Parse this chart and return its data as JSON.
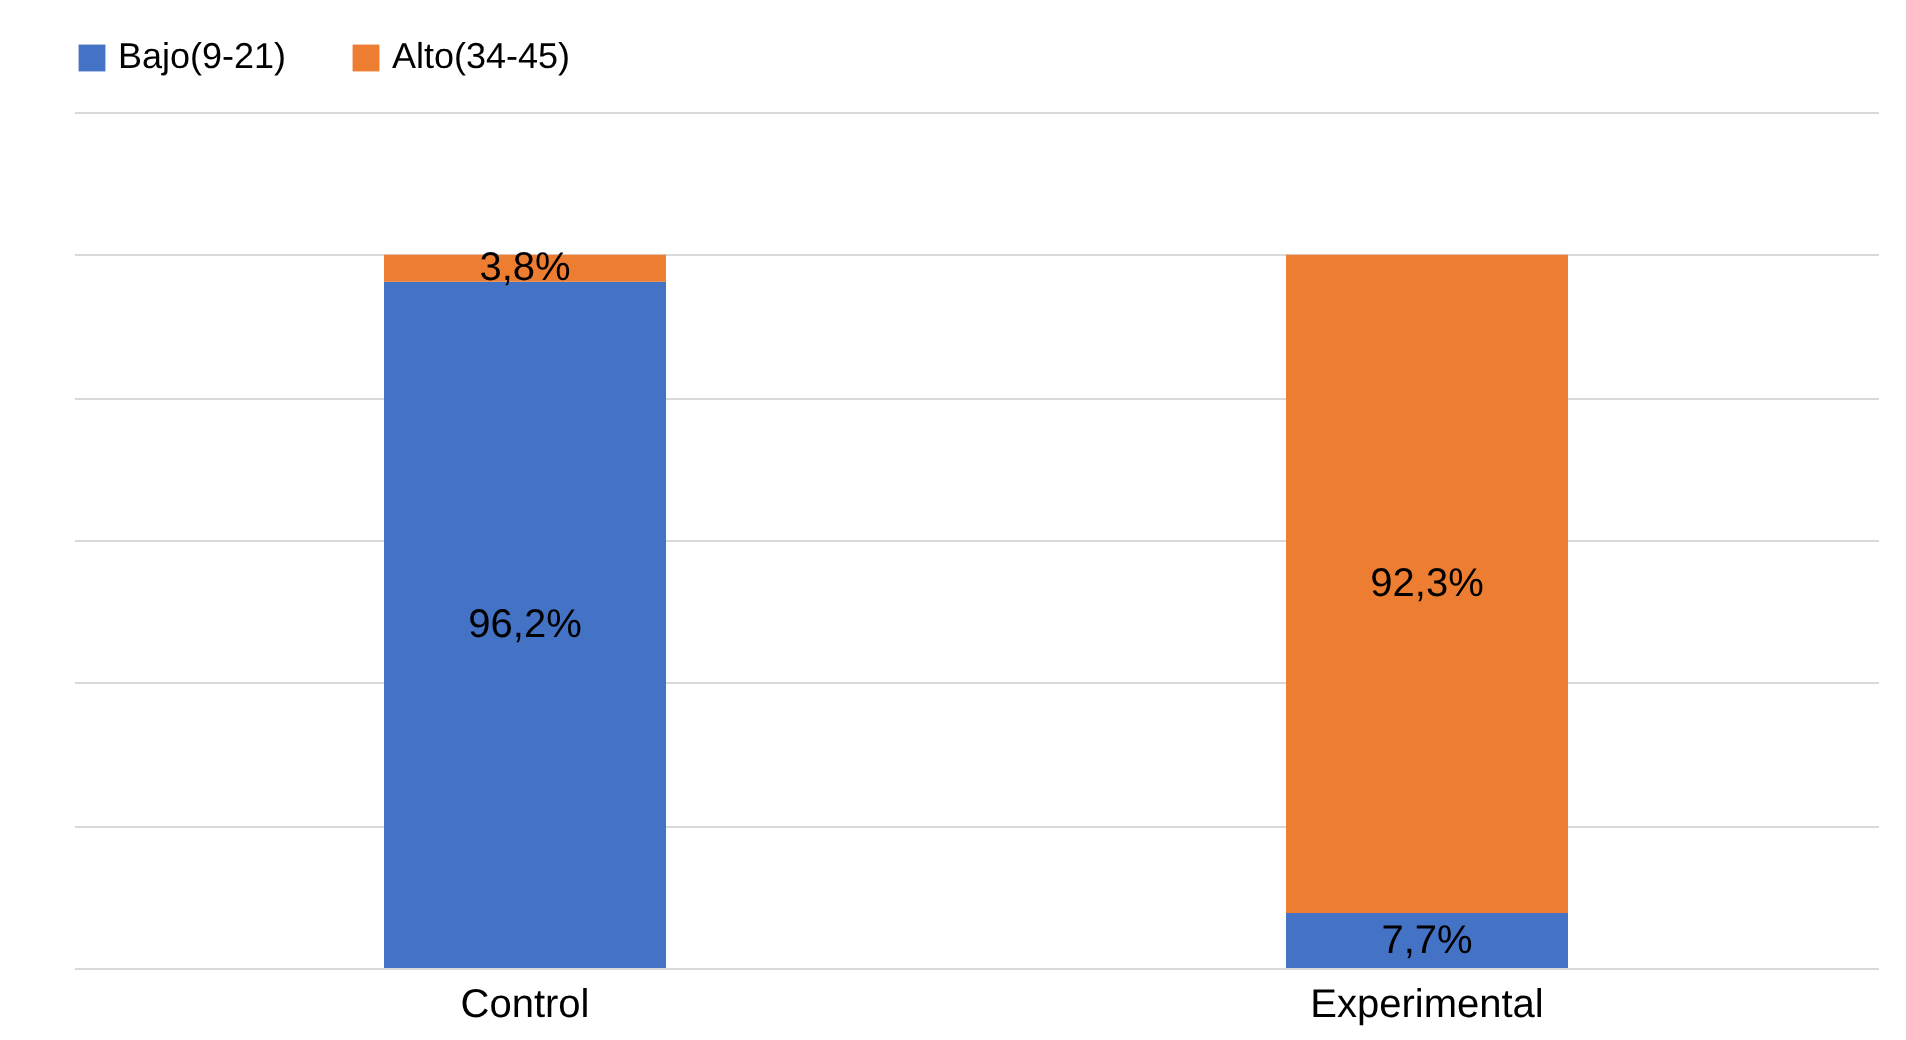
{
  "chart_data": {
    "type": "bar",
    "stacked": true,
    "categories": [
      "Control",
      "Experimental"
    ],
    "series": [
      {
        "name": "Bajo(9-21)",
        "color": "#4472c4",
        "values": [
          96.2,
          7.7
        ],
        "value_labels": [
          "96,2%",
          "7,7%"
        ]
      },
      {
        "name": "Alto(34-45)",
        "color": "#ed7d31",
        "values": [
          3.8,
          92.3
        ],
        "value_labels": [
          "3,8%",
          "92,3%"
        ]
      }
    ],
    "ylim": [
      0,
      120
    ],
    "yticks": [
      {
        "value": 0,
        "label": null
      },
      {
        "value": 20,
        "label": null
      },
      {
        "value": 40,
        "label": null
      },
      {
        "value": 60,
        "label": null
      },
      {
        "value": 80,
        "label": null
      },
      {
        "value": 100,
        "label": null
      },
      {
        "value": 120,
        "label": null
      }
    ],
    "grid": "y",
    "legend": "top",
    "tick_labels": "x"
  }
}
